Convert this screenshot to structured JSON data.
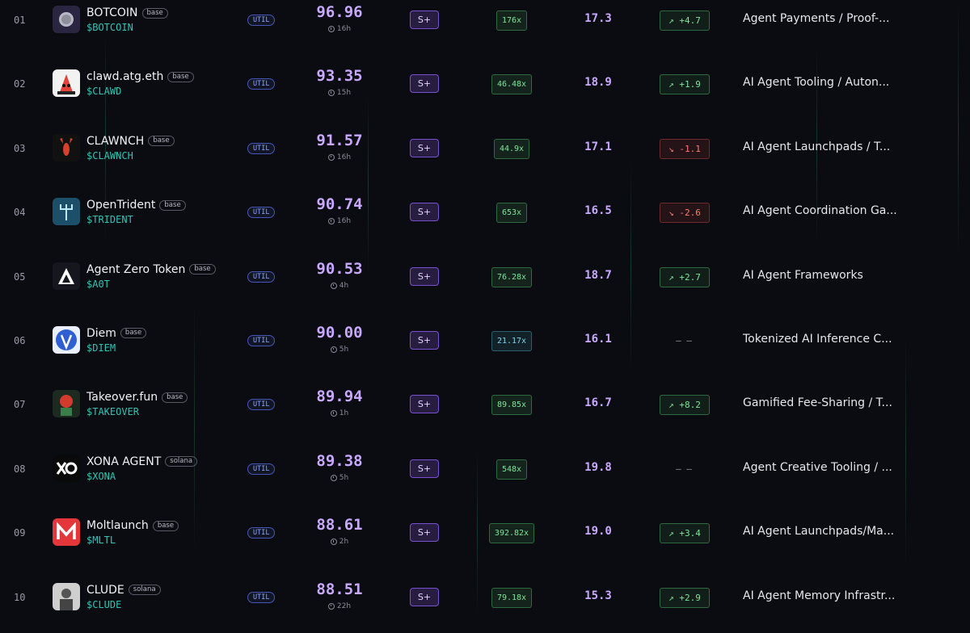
{
  "colors": {
    "background": "#0b0c11",
    "score": "#c9a9ff",
    "ticker": "#2ec4b6",
    "positive": "#7fe39b",
    "negative": "#ff7b72"
  },
  "rows": [
    {
      "rank": "01",
      "name": "BOTCOIN",
      "chain": "base",
      "ticker": "$BOTCOIN",
      "type": "UTIL",
      "score": "96.96",
      "age": "16h",
      "grade": "S+",
      "multiple": "176x",
      "multiple_style": "green",
      "volume": "17.3",
      "change": "+4.7",
      "change_dir": "up",
      "category": "Agent Payments / Proof-...",
      "logo_icon": "silver-coin-icon"
    },
    {
      "rank": "02",
      "name": "clawd.atg.eth",
      "chain": "base",
      "ticker": "$CLAWD",
      "type": "UTIL",
      "score": "93.35",
      "age": "15h",
      "grade": "S+",
      "multiple": "46.48x",
      "multiple_style": "green",
      "volume": "18.9",
      "change": "+1.9",
      "change_dir": "up",
      "category": "AI Agent Tooling / Auton...",
      "logo_icon": "red-claw-mascot-icon"
    },
    {
      "rank": "03",
      "name": "CLAWNCH",
      "chain": "base",
      "ticker": "$CLAWNCH",
      "type": "UTIL",
      "score": "91.57",
      "age": "16h",
      "grade": "S+",
      "multiple": "44.9x",
      "multiple_style": "green",
      "volume": "17.1",
      "change": "-1.1",
      "change_dir": "down",
      "category": "AI Agent Launchpads / T...",
      "logo_icon": "lobster-icon"
    },
    {
      "rank": "04",
      "name": "OpenTrident",
      "chain": "base",
      "ticker": "$TRIDENT",
      "type": "UTIL",
      "score": "90.74",
      "age": "16h",
      "grade": "S+",
      "multiple": "653x",
      "multiple_style": "green",
      "volume": "16.5",
      "change": "-2.6",
      "change_dir": "down",
      "category": "AI Agent Coordination Ga...",
      "logo_icon": "trident-icon"
    },
    {
      "rank": "05",
      "name": "Agent Zero Token",
      "chain": "base",
      "ticker": "$A0T",
      "type": "UTIL",
      "score": "90.53",
      "age": "4h",
      "grade": "S+",
      "multiple": "76.28x",
      "multiple_style": "green",
      "volume": "18.7",
      "change": "+2.7",
      "change_dir": "up",
      "category": "AI Agent Frameworks",
      "logo_icon": "triangle-a-icon"
    },
    {
      "rank": "06",
      "name": "Diem",
      "chain": "base",
      "ticker": "$DIEM",
      "type": "UTIL",
      "score": "90.00",
      "age": "5h",
      "grade": "S+",
      "multiple": "21.17x",
      "multiple_style": "cyan",
      "volume": "16.1",
      "change": "– –",
      "change_dir": "flat",
      "category": "Tokenized AI Inference C...",
      "logo_icon": "blue-shield-icon"
    },
    {
      "rank": "07",
      "name": "Takeover.fun",
      "chain": "base",
      "ticker": "$TAKEOVER",
      "type": "UTIL",
      "score": "89.94",
      "age": "1h",
      "grade": "S+",
      "multiple": "89.85x",
      "multiple_style": "green",
      "volume": "16.7",
      "change": "+8.2",
      "change_dir": "up",
      "category": "Gamified Fee-Sharing / T...",
      "logo_icon": "red-character-icon"
    },
    {
      "rank": "08",
      "name": "XONA AGENT",
      "chain": "solana",
      "ticker": "$XONA",
      "type": "UTIL",
      "score": "89.38",
      "age": "5h",
      "grade": "S+",
      "multiple": "548x",
      "multiple_style": "green",
      "volume": "19.8",
      "change": "– –",
      "change_dir": "flat",
      "category": "Agent Creative Tooling / ...",
      "logo_icon": "xo-logo-icon"
    },
    {
      "rank": "09",
      "name": "Moltlaunch",
      "chain": "base",
      "ticker": "$MLTL",
      "type": "UTIL",
      "score": "88.61",
      "age": "2h",
      "grade": "S+",
      "multiple": "392.82x",
      "multiple_style": "green",
      "volume": "19.0",
      "change": "+3.4",
      "change_dir": "up",
      "category": "AI Agent Launchpads/Ma...",
      "logo_icon": "red-m-logo-icon"
    },
    {
      "rank": "10",
      "name": "CLUDE",
      "chain": "solana",
      "ticker": "$CLUDE",
      "type": "UTIL",
      "score": "88.51",
      "age": "22h",
      "grade": "S+",
      "multiple": "79.18x",
      "multiple_style": "green",
      "volume": "15.3",
      "change": "+2.9",
      "change_dir": "up",
      "category": "AI Agent Memory Infrastr...",
      "logo_icon": "grayscale-portrait-icon"
    }
  ]
}
